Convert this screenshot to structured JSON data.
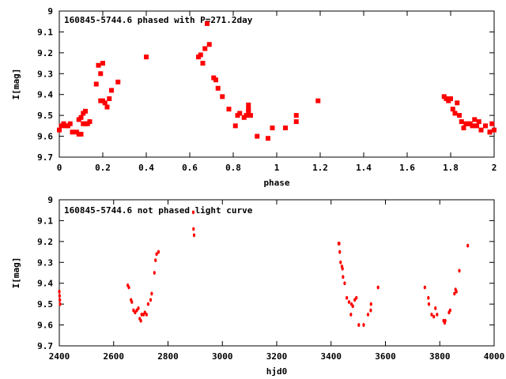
{
  "chart_data": [
    {
      "type": "scatter",
      "title": "160845-5744.6 phased with P=271.2day",
      "xlabel": "phase",
      "ylabel": "I[mag]",
      "xlim": [
        0,
        2
      ],
      "ylim": [
        9,
        9.7
      ],
      "y_inverted": true,
      "xticks": [
        "0",
        "0.2",
        "0.4",
        "0.6",
        "0.8",
        "1",
        "1.2",
        "1.4",
        "1.6",
        "1.8",
        "2"
      ],
      "yticks": [
        "9",
        "9.1",
        "9.2",
        "9.3",
        "9.4",
        "9.5",
        "9.6",
        "9.7"
      ],
      "marker_color": "#ff0000",
      "series": [
        {
          "x": [
            0.0,
            0.01,
            0.02,
            0.03,
            0.04,
            0.05,
            0.06,
            0.08,
            0.09,
            0.09,
            0.1,
            0.1,
            0.11,
            0.11,
            0.12,
            0.12,
            0.13,
            0.14,
            0.17,
            0.18,
            0.19,
            0.19,
            0.2,
            0.2,
            0.21,
            0.22,
            0.23,
            0.24,
            0.27,
            0.4,
            0.64,
            0.65,
            0.66,
            0.67,
            0.68,
            0.69,
            0.71,
            0.72,
            0.73,
            0.75,
            0.78,
            0.81,
            0.82,
            0.83,
            0.85,
            0.86,
            0.87,
            0.87,
            0.87,
            0.88,
            0.91,
            0.96,
            0.98,
            1.04,
            1.09,
            1.09,
            1.19,
            1.77,
            1.78,
            1.79,
            1.8,
            1.81,
            1.82,
            1.82,
            1.83,
            1.84,
            1.85,
            1.86,
            1.87,
            1.88,
            1.89,
            1.9,
            1.91,
            1.92,
            1.93,
            1.94,
            1.96,
            1.98,
            1.98,
            1.99,
            2.0
          ],
          "y": [
            9.57,
            9.55,
            9.54,
            9.55,
            9.55,
            9.54,
            9.58,
            9.58,
            9.59,
            9.52,
            9.51,
            9.59,
            9.54,
            9.49,
            9.54,
            9.48,
            9.54,
            9.53,
            9.35,
            9.26,
            9.3,
            9.43,
            9.25,
            9.43,
            9.44,
            9.46,
            9.42,
            9.38,
            9.34,
            9.22,
            9.22,
            9.21,
            9.25,
            9.18,
            9.06,
            9.16,
            9.32,
            9.33,
            9.37,
            9.41,
            9.47,
            9.55,
            9.5,
            9.49,
            9.51,
            9.5,
            9.48,
            9.47,
            9.45,
            9.5,
            9.6,
            9.61,
            9.56,
            9.56,
            9.5,
            9.53,
            9.43,
            9.41,
            9.42,
            9.43,
            9.42,
            9.47,
            9.49,
            9.49,
            9.44,
            9.5,
            9.53,
            9.56,
            9.54,
            9.54,
            9.54,
            9.55,
            9.52,
            9.55,
            9.53,
            9.57,
            9.55,
            9.58,
            9.58,
            9.54,
            9.57
          ]
        }
      ]
    },
    {
      "type": "scatter",
      "title": "160845-5744.6 not phased light curve",
      "xlabel": "hjd0",
      "ylabel": "I[mag]",
      "xlim": [
        2400,
        4000
      ],
      "ylim": [
        9,
        9.7
      ],
      "y_inverted": true,
      "xticks": [
        "2400",
        "2600",
        "2800",
        "3000",
        "3200",
        "3400",
        "3600",
        "3800",
        "4000"
      ],
      "yticks": [
        "9",
        "9.1",
        "9.2",
        "9.3",
        "9.4",
        "9.5",
        "9.6",
        "9.7"
      ],
      "marker_color": "#ff0000",
      "series": [
        {
          "x": [
            2400,
            2401,
            2402,
            2403,
            2652,
            2656,
            2664,
            2667,
            2673,
            2679,
            2685,
            2691,
            2696,
            2700,
            2703,
            2710,
            2715,
            2721,
            2727,
            2736,
            2740,
            2750,
            2754,
            2758,
            2765,
            2893,
            2894,
            2896,
            3428,
            3430,
            3432,
            3435,
            3440,
            3442,
            3444,
            3450,
            3458,
            3466,
            3473,
            3475,
            3480,
            3487,
            3493,
            3502,
            3520,
            3536,
            3546,
            3547,
            3573,
            3745,
            3758,
            3760,
            3770,
            3778,
            3784,
            3790,
            3814,
            3818,
            3820,
            3834,
            3838,
            3854,
            3858,
            3861,
            3872,
            3903
          ],
          "y": [
            9.44,
            9.46,
            9.48,
            9.5,
            9.41,
            9.42,
            9.48,
            9.49,
            9.53,
            9.54,
            9.53,
            9.52,
            9.57,
            9.58,
            9.55,
            9.55,
            9.54,
            9.55,
            9.5,
            9.48,
            9.45,
            9.35,
            9.29,
            9.26,
            9.25,
            9.06,
            9.14,
            9.17,
            9.21,
            9.21,
            9.25,
            9.3,
            9.32,
            9.33,
            9.37,
            9.4,
            9.47,
            9.49,
            9.55,
            9.5,
            9.51,
            9.48,
            9.47,
            9.6,
            9.6,
            9.55,
            9.53,
            9.5,
            9.42,
            9.42,
            9.47,
            9.5,
            9.55,
            9.56,
            9.52,
            9.55,
            9.58,
            9.59,
            9.58,
            9.54,
            9.53,
            9.45,
            9.43,
            9.44,
            9.34,
            9.22
          ]
        }
      ]
    }
  ]
}
